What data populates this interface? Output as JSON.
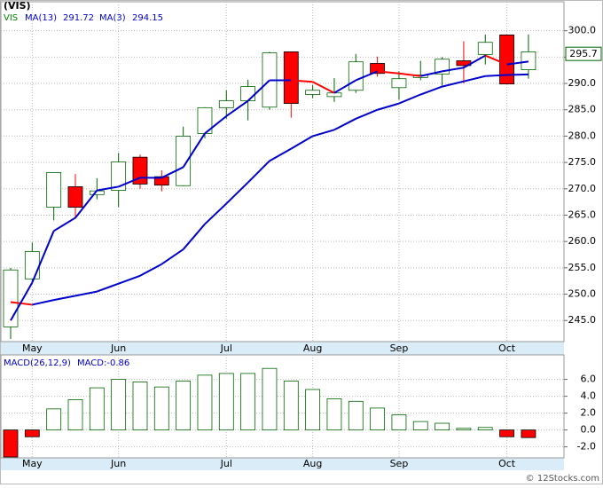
{
  "footer": "© 12Stocks.com",
  "chart_data": [
    {
      "type": "candlestick",
      "title": "(VIS)",
      "symbol": "VIS",
      "categories": [
        null,
        "May",
        null,
        null,
        null,
        "Jun",
        null,
        null,
        null,
        null,
        "Jul",
        null,
        null,
        null,
        "Aug",
        null,
        null,
        null,
        "Sep",
        null,
        null,
        null,
        null,
        "Oct",
        null
      ],
      "open": [
        243.8,
        252.9,
        266.5,
        270.4,
        268.9,
        269.7,
        276.0,
        272.3,
        270.6,
        280.5,
        285.4,
        286.7,
        285.5,
        296.0,
        287.9,
        287.5,
        288.7,
        293.8,
        289.2,
        291.1,
        291.8,
        294.3,
        295.5,
        299.2,
        292.6
      ],
      "high": [
        255.0,
        259.8,
        273.1,
        272.8,
        272.0,
        276.8,
        276.5,
        273.5,
        281.8,
        285.5,
        288.7,
        290.7,
        296.0,
        296.0,
        289.7,
        291.0,
        295.6,
        295.1,
        292.3,
        294.3,
        295.0,
        298.0,
        299.3,
        299.2,
        299.3
      ],
      "low": [
        241.5,
        252.2,
        264.0,
        264.3,
        268.0,
        266.5,
        270.0,
        269.5,
        270.5,
        279.6,
        283.3,
        283.0,
        285.0,
        283.5,
        287.2,
        286.5,
        288.2,
        291.3,
        286.9,
        290.6,
        289.6,
        290.0,
        293.6,
        289.9,
        290.9
      ],
      "close": [
        254.6,
        258.1,
        273.1,
        266.5,
        269.6,
        275.1,
        270.9,
        270.7,
        280.0,
        285.4,
        286.7,
        289.4,
        295.8,
        286.2,
        288.7,
        288.2,
        294.1,
        291.9,
        290.9,
        291.6,
        294.6,
        293.4,
        297.8,
        289.9,
        296.0
      ],
      "up_color": "#006400",
      "down_color": "#ff0000",
      "series": [
        {
          "name": "MA(13)",
          "last": 291.72,
          "values": [
            248.5,
            248.0,
            248.9,
            249.7,
            250.5,
            252.0,
            253.5,
            255.7,
            258.5,
            263.3,
            267.2,
            271.2,
            275.3,
            277.6,
            280.0,
            281.2,
            283.3,
            285.0,
            286.2,
            287.9,
            289.4,
            290.4,
            291.4,
            291.6,
            291.72
          ]
        },
        {
          "name": "MA(3)",
          "last": 294.15,
          "values": [
            245.0,
            252.2,
            262.0,
            264.5,
            269.7,
            270.4,
            272.1,
            272.1,
            274.1,
            280.5,
            283.8,
            286.7,
            290.6,
            290.6,
            290.3,
            288.2,
            290.6,
            292.3,
            291.9,
            291.4,
            292.3,
            293.0,
            295.3,
            293.6,
            294.15
          ]
        }
      ],
      "line_up_color": "#0000cc",
      "line_down_color": "#ff0000",
      "last_price": 295.7,
      "ylim": [
        241,
        305.5
      ],
      "yticks": [
        {
          "value": 245,
          "label": "245.0"
        },
        {
          "value": 250,
          "label": "250.0"
        },
        {
          "value": 255,
          "label": "255.0"
        },
        {
          "value": 260,
          "label": "260.0"
        },
        {
          "value": 265,
          "label": "265.0"
        },
        {
          "value": 270,
          "label": "270.0"
        },
        {
          "value": 275,
          "label": "275.0"
        },
        {
          "value": 280,
          "label": "280.0"
        },
        {
          "value": 285,
          "label": "285.0"
        },
        {
          "value": 290,
          "label": "290.0"
        },
        {
          "value": 295,
          "label": "295.0"
        },
        {
          "value": 300,
          "label": "300.0"
        }
      ],
      "grid": true
    },
    {
      "type": "bar",
      "title": "MACD(26,12,9)",
      "legend": "MACD:-0.86",
      "categories": [
        null,
        "May",
        null,
        null,
        null,
        "Jun",
        null,
        null,
        null,
        null,
        "Jul",
        null,
        null,
        null,
        "Aug",
        null,
        null,
        null,
        "Sep",
        null,
        null,
        null,
        null,
        "Oct",
        null
      ],
      "values": [
        -3.2,
        -0.8,
        2.5,
        3.6,
        5.0,
        6.0,
        5.7,
        5.1,
        5.8,
        6.5,
        6.7,
        6.7,
        7.3,
        5.8,
        4.8,
        3.7,
        3.4,
        2.6,
        1.8,
        1.0,
        0.8,
        0.2,
        0.3,
        -0.8,
        -0.9
      ],
      "up_color": "#006400",
      "down_color": "#ff0000",
      "ylim": [
        -3.3,
        8.9
      ],
      "yticks": [
        {
          "value": -2,
          "label": "-2.0"
        },
        {
          "value": 0,
          "label": "0.0"
        },
        {
          "value": 2,
          "label": "2.0"
        },
        {
          "value": 4,
          "label": "4.0"
        },
        {
          "value": 6,
          "label": "6.0"
        }
      ],
      "grid": true
    }
  ]
}
